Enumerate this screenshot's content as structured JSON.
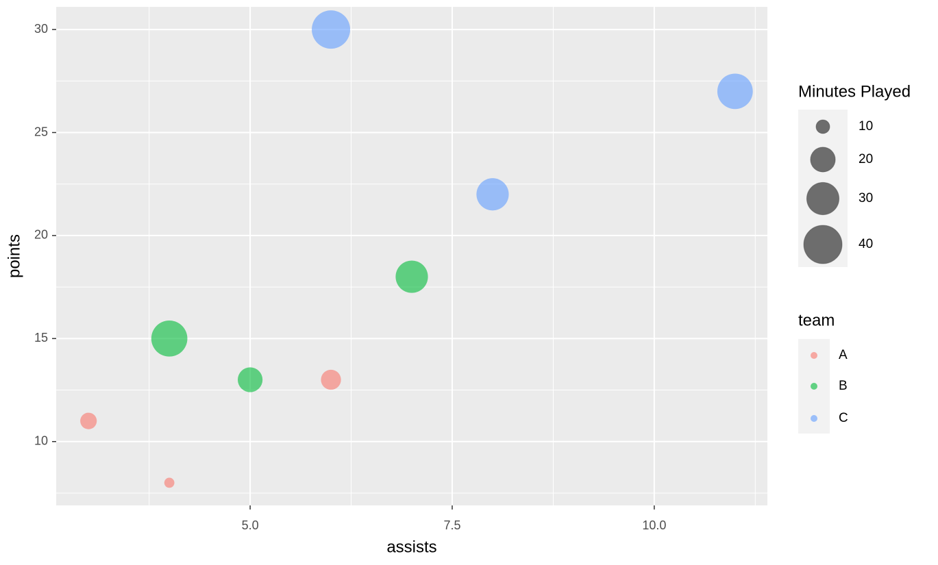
{
  "chart_data": {
    "type": "scatter",
    "x_label": "assists",
    "y_label": "points",
    "xlim": [
      2.6,
      11.4
    ],
    "ylim": [
      6.9,
      31.1
    ],
    "xticks": [
      {
        "value": 5,
        "label": "5.0"
      },
      {
        "value": 7.5,
        "label": "7.5"
      },
      {
        "value": 10,
        "label": "10.0"
      }
    ],
    "yticks": [
      10,
      15,
      20,
      25,
      30
    ],
    "grid": true,
    "size_legend": {
      "title": "Minutes Played",
      "values": [
        10,
        20,
        30,
        40
      ]
    },
    "color_legend_title": "team",
    "series": [
      {
        "name": "A",
        "color": "#F8766D",
        "x": [
          3,
          4,
          6
        ],
        "values": [
          11,
          8,
          13
        ],
        "sizes": [
          12,
          8,
          15
        ]
      },
      {
        "name": "B",
        "color": "#00BA38",
        "x": [
          4,
          5,
          7
        ],
        "values": [
          15,
          13,
          18
        ],
        "sizes": [
          36,
          20,
          30
        ]
      },
      {
        "name": "C",
        "color": "#619CFF",
        "x": [
          6,
          8,
          11
        ],
        "values": [
          30,
          22,
          27
        ],
        "sizes": [
          40,
          30,
          35
        ]
      }
    ]
  }
}
